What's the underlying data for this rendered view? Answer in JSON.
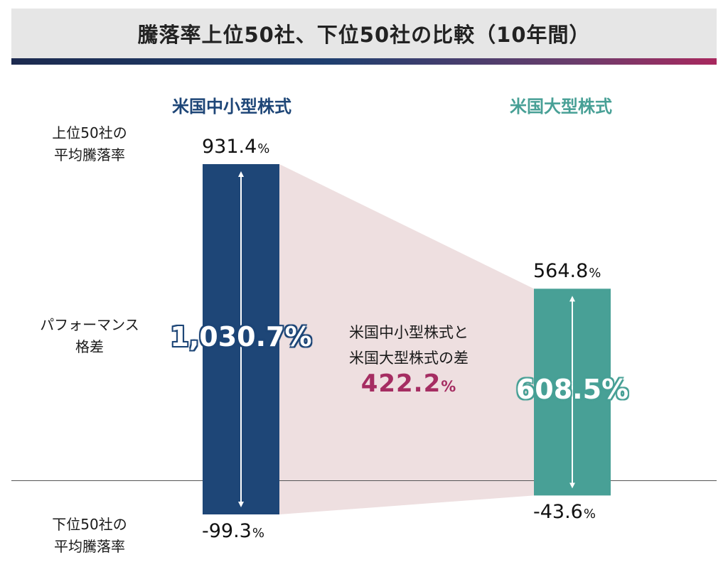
{
  "title": "騰落率上位50社、下位50社の比較（10年間）",
  "row_labels": {
    "top": [
      "上位50社の",
      "平均騰落率"
    ],
    "gap": [
      "パフォーマンス",
      "格差"
    ],
    "bottom": [
      "下位50社の",
      "平均騰落率"
    ]
  },
  "colors": {
    "small_mid": "#1e4677",
    "large": "#48a096",
    "band": "#eedfe0",
    "diff": "#a52d62",
    "baseline": "#555555"
  },
  "chart_data": {
    "type": "bar",
    "title": "騰落率上位50社、下位50社の比較（10年間）",
    "unit": "%",
    "ylim": [
      -99.3,
      931.4
    ],
    "series": [
      {
        "name": "米国中小型株式",
        "top_value": 931.4,
        "bottom_value": -99.3,
        "spread": 1030.7,
        "top_label": "931.4",
        "bottom_label": "-99.3",
        "spread_label": "1,030.7"
      },
      {
        "name": "米国大型株式",
        "top_value": 564.8,
        "bottom_value": -43.6,
        "spread": 608.5,
        "top_label": "564.8",
        "bottom_label": "-43.6",
        "spread_label": "608.5"
      }
    ],
    "difference": {
      "label": [
        "米国中小型株式と",
        "米国大型株式の差"
      ],
      "value": 422.2,
      "value_label": "422.2"
    },
    "pct_sign": "%"
  }
}
